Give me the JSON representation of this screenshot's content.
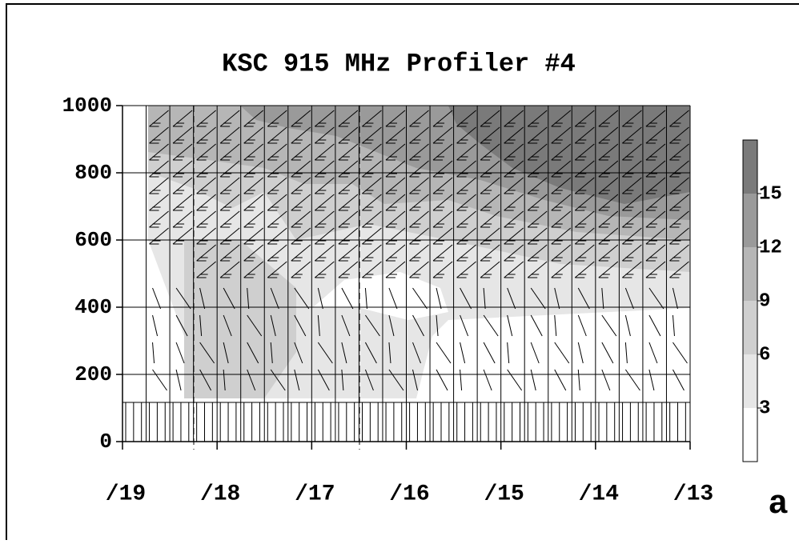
{
  "chart_data": {
    "type": "contour",
    "title": "KSC 915 MHz Profiler #4",
    "categories": [
      "/19",
      "/18",
      "/17",
      "/16",
      "/15",
      "/14",
      "/13"
    ],
    "ylim": [
      0,
      1000
    ],
    "yticks": [
      0,
      200,
      400,
      600,
      800,
      1000
    ],
    "clim": [
      0,
      18
    ],
    "cticks": [
      3,
      6,
      9,
      12,
      15
    ],
    "colors": [
      "#ffffff",
      "#e6e6e6",
      "#cfcfcf",
      "#b6b6b6",
      "#9a9a9a",
      "#7a7a7a"
    ],
    "grid": true,
    "annotation": "a"
  }
}
